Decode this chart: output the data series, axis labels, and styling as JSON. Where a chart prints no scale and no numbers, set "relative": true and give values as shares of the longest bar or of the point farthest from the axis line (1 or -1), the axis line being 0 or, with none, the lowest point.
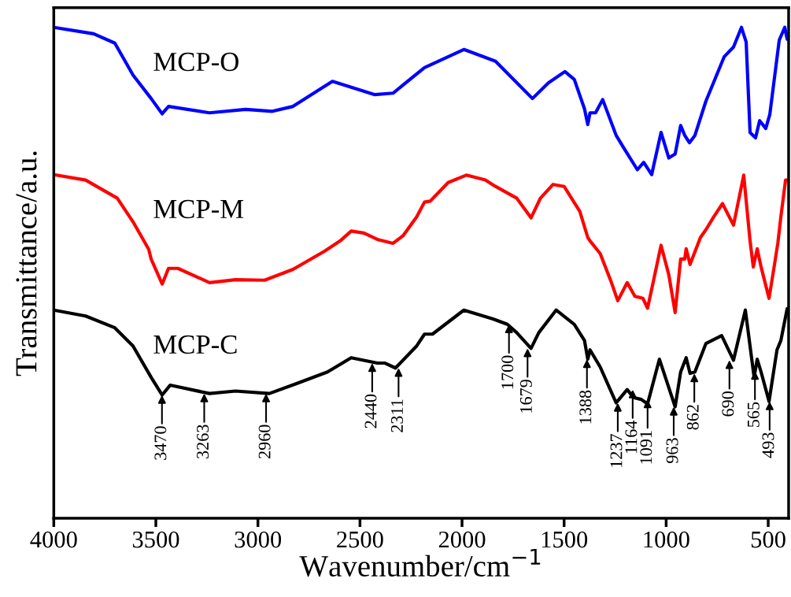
{
  "chart_data": {
    "type": "line",
    "relative": true,
    "xlabel": "Wavenumber/cm$^{−1}$",
    "ylabel": "Transmittance/a.u.",
    "xlim": [
      4000,
      400
    ],
    "xticks": [
      4000,
      3500,
      3000,
      2500,
      2000,
      1500,
      1000,
      500
    ],
    "tick_labels": "x",
    "series": [
      {
        "name": "MCP-O",
        "color": "#0000ff",
        "x": [
          4000,
          3805,
          3701,
          3612,
          3523,
          3469,
          3438,
          3237,
          3060,
          2929,
          2828,
          2635,
          2427,
          2338,
          2184,
          1991,
          1836,
          1655,
          1577,
          1496,
          1450,
          1400,
          1384,
          1373,
          1346,
          1311,
          1245,
          1207,
          1141,
          1110,
          1071,
          1025,
          987,
          956,
          929,
          909,
          886,
          859,
          805,
          716,
          670,
          631,
          608,
          589,
          562,
          542,
          512,
          492,
          446,
          419,
          407
        ],
        "values": [
          1.0,
          0.987,
          0.968,
          0.903,
          0.855,
          0.824,
          0.839,
          0.826,
          0.833,
          0.829,
          0.839,
          0.89,
          0.863,
          0.866,
          0.918,
          0.955,
          0.931,
          0.855,
          0.887,
          0.91,
          0.894,
          0.834,
          0.802,
          0.826,
          0.826,
          0.853,
          0.78,
          0.754,
          0.71,
          0.725,
          0.7,
          0.786,
          0.734,
          0.742,
          0.8,
          0.78,
          0.765,
          0.78,
          0.85,
          0.94,
          0.96,
          1.0,
          0.97,
          0.786,
          0.775,
          0.81,
          0.794,
          0.823,
          0.974,
          1.0,
          0.976
        ]
      },
      {
        "name": "MCP-M",
        "color": "#ff0000",
        "x": [
          4000,
          3844,
          3689,
          3612,
          3535,
          3523,
          3469,
          3438,
          3392,
          3237,
          3110,
          2967,
          2828,
          2674,
          2597,
          2543,
          2481,
          2415,
          2338,
          2288,
          2222,
          2184,
          2156,
          2068,
          1979,
          1886,
          1836,
          1732,
          1662,
          1616,
          1554,
          1500,
          1423,
          1384,
          1373,
          1323,
          1268,
          1237,
          1191,
          1153,
          1114,
          1091,
          1064,
          1025,
          987,
          956,
          929,
          909,
          902,
          883,
          832,
          805,
          767,
          724,
          670,
          620,
          589,
          573,
          554,
          535,
          496,
          473,
          453,
          438,
          415,
          407
        ],
        "values": [
          0.7,
          0.689,
          0.652,
          0.604,
          0.548,
          0.528,
          0.477,
          0.509,
          0.509,
          0.48,
          0.486,
          0.485,
          0.507,
          0.544,
          0.565,
          0.585,
          0.581,
          0.568,
          0.56,
          0.576,
          0.614,
          0.644,
          0.646,
          0.684,
          0.699,
          0.689,
          0.676,
          0.652,
          0.612,
          0.652,
          0.68,
          0.676,
          0.625,
          0.572,
          0.565,
          0.539,
          0.48,
          0.443,
          0.48,
          0.452,
          0.448,
          0.428,
          0.48,
          0.556,
          0.496,
          0.419,
          0.528,
          0.528,
          0.549,
          0.517,
          0.572,
          0.588,
          0.614,
          0.641,
          0.597,
          0.699,
          0.565,
          0.512,
          0.549,
          0.512,
          0.448,
          0.507,
          0.56,
          0.614,
          0.689,
          0.689
        ]
      },
      {
        "name": "MCP-C",
        "color": "#000000",
        "x": [
          4000,
          3844,
          3701,
          3612,
          3523,
          3469,
          3430,
          3237,
          3110,
          2944,
          2813,
          2659,
          2543,
          2415,
          2377,
          2326,
          2222,
          2184,
          2145,
          1991,
          1848,
          1778,
          1732,
          1662,
          1624,
          1539,
          1450,
          1400,
          1384,
          1373,
          1323,
          1245,
          1191,
          1160,
          1122,
          1091,
          1033,
          956,
          929,
          902,
          883,
          859,
          805,
          728,
          670,
          612,
          569,
          554,
          535,
          496,
          457,
          438,
          407
        ],
        "values": [
          0.424,
          0.412,
          0.388,
          0.351,
          0.287,
          0.251,
          0.271,
          0.254,
          0.259,
          0.254,
          0.274,
          0.298,
          0.327,
          0.316,
          0.316,
          0.306,
          0.351,
          0.375,
          0.375,
          0.424,
          0.406,
          0.395,
          0.378,
          0.346,
          0.378,
          0.424,
          0.395,
          0.362,
          0.324,
          0.343,
          0.308,
          0.235,
          0.262,
          0.246,
          0.242,
          0.233,
          0.324,
          0.227,
          0.298,
          0.327,
          0.295,
          0.298,
          0.356,
          0.372,
          0.322,
          0.424,
          0.287,
          0.324,
          0.298,
          0.238,
          0.343,
          0.362,
          0.427
        ]
      }
    ],
    "annotations": [
      {
        "text": "3470",
        "x": 3470,
        "y": 0.251
      },
      {
        "text": "3263",
        "x": 3263,
        "y": 0.254
      },
      {
        "text": "2960",
        "x": 2960,
        "y": 0.254
      },
      {
        "text": "2440",
        "x": 2440,
        "y": 0.316
      },
      {
        "text": "2311",
        "x": 2311,
        "y": 0.306
      },
      {
        "text": "1700",
        "x": 1770,
        "y": 0.395
      },
      {
        "text": "1679",
        "x": 1679,
        "y": 0.346
      },
      {
        "text": "1388",
        "x": 1388,
        "y": 0.324
      },
      {
        "text": "1237",
        "x": 1237,
        "y": 0.235
      },
      {
        "text": "1164",
        "x": 1164,
        "y": 0.262
      },
      {
        "text": "1091",
        "x": 1091,
        "y": 0.242
      },
      {
        "text": "963",
        "x": 963,
        "y": 0.227
      },
      {
        "text": "862",
        "x": 862,
        "y": 0.295
      },
      {
        "text": "690",
        "x": 690,
        "y": 0.322
      },
      {
        "text": "565",
        "x": 565,
        "y": 0.3
      },
      {
        "text": "493",
        "x": 493,
        "y": 0.238
      }
    ]
  }
}
